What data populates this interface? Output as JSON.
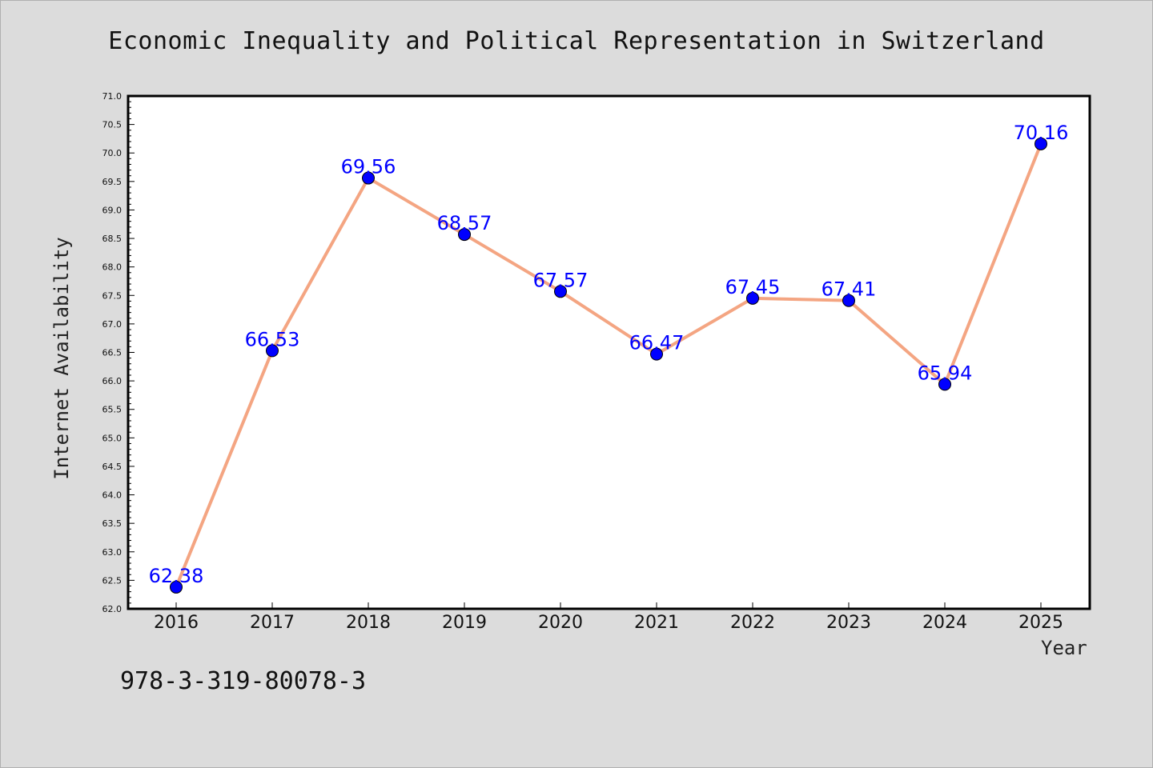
{
  "chart_data": {
    "type": "line",
    "title": "Economic Inequality and Political Representation in Switzerland",
    "xlabel": "Year",
    "ylabel": "Internet Availability",
    "categories": [
      "2016",
      "2017",
      "2018",
      "2019",
      "2020",
      "2021",
      "2022",
      "2023",
      "2024",
      "2025"
    ],
    "values": [
      62.38,
      66.53,
      69.56,
      68.57,
      67.57,
      66.47,
      67.45,
      67.41,
      65.94,
      70.16
    ],
    "data_labels": [
      "62.38",
      "66.53",
      "69.56",
      "68.57",
      "67.57",
      "66.47",
      "67.45",
      "67.41",
      "65.94",
      "70.16"
    ],
    "ylim": [
      62.0,
      71.0
    ],
    "yticks": [
      "62.0",
      "62.5",
      "63.0",
      "63.5",
      "64.0",
      "64.5",
      "65.0",
      "65.5",
      "66.0",
      "66.5",
      "67.0",
      "67.5",
      "68.0",
      "68.5",
      "69.0",
      "69.5",
      "70.0",
      "70.5",
      "71.0"
    ],
    "grid": false,
    "line_color": "#f4a582",
    "marker_color": "#0000ff",
    "label_color": "#0000ff"
  },
  "footer": {
    "isbn": "978-3-319-80078-3"
  }
}
